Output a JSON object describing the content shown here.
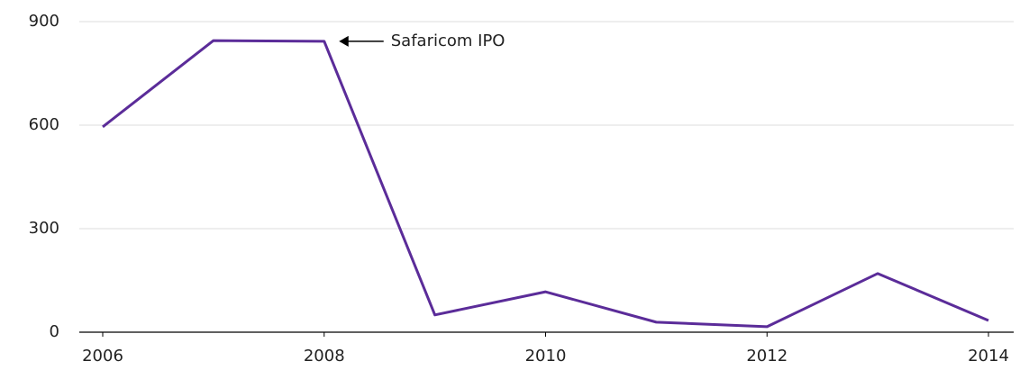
{
  "chart_data": {
    "type": "line",
    "x": [
      2006,
      2007,
      2008,
      2009,
      2010,
      2011,
      2012,
      2013,
      2014
    ],
    "series": [
      {
        "color": "#5b2c99",
        "values": [
          595,
          845,
          843,
          50,
          117,
          29,
          16,
          170,
          34
        ]
      }
    ],
    "xlim": [
      2006,
      2014
    ],
    "xticks": [
      2006,
      2008,
      2010,
      2012,
      2014
    ],
    "ylim": [
      0,
      900
    ],
    "yticks": [
      0,
      300,
      600,
      900
    ],
    "grid": true,
    "annotations": [
      {
        "text": "Safaricom IPO",
        "x": 2008,
        "y": 843
      }
    ]
  }
}
